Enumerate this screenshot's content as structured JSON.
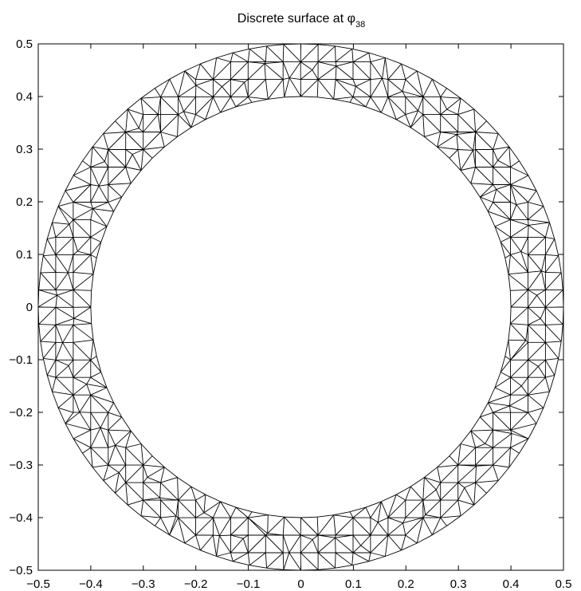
{
  "chart_data": {
    "type": "mesh",
    "title": "Discrete surface at φ",
    "title_subscript": "38",
    "xlim": [
      -0.5,
      0.5
    ],
    "ylim": [
      -0.5,
      0.5
    ],
    "xticks": [
      -0.5,
      -0.4,
      -0.3,
      -0.2,
      -0.1,
      0,
      0.1,
      0.2,
      0.3,
      0.4,
      0.5
    ],
    "yticks": [
      0.5,
      0.4,
      0.3,
      0.2,
      0.1,
      0,
      -0.1,
      -0.2,
      -0.3,
      -0.4,
      -0.5
    ],
    "xtick_labels": [
      "−0.5",
      "−0.4",
      "−0.3",
      "−0.2",
      "−0.1",
      "0",
      "0.1",
      "0.2",
      "0.3",
      "0.4",
      "0.5"
    ],
    "ytick_labels": [
      "0.5",
      "0.4",
      "0.3",
      "0.2",
      "0.1",
      "0",
      "−0.1",
      "−0.2",
      "−0.3",
      "−0.4",
      "−0.5"
    ],
    "shape": {
      "kind": "annulus-triangulation",
      "center": [
        0,
        0
      ],
      "outer_radius": 0.5,
      "inner_radius": 0.4,
      "grid_spacing": 0.0333
    },
    "edge_color": "#000000",
    "grid": false
  }
}
